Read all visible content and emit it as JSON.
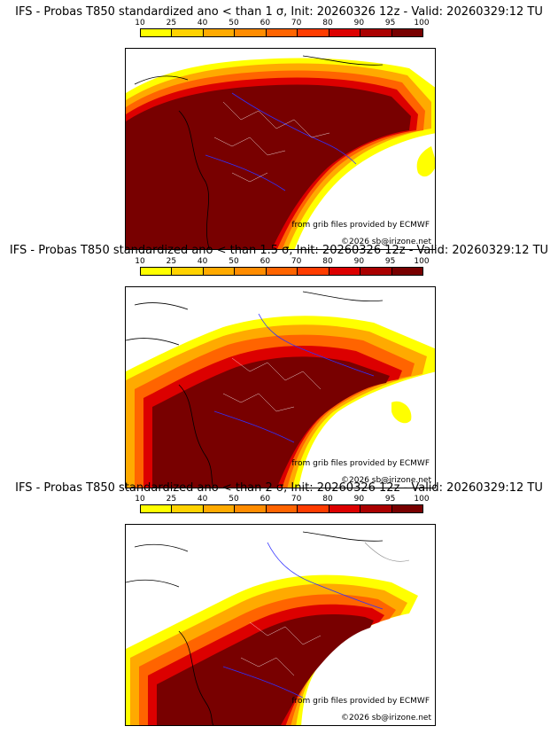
{
  "panels": [
    {
      "title": "IFS - Probas T850  standardized ano < than 1 σ, Init: 20260326 12z - Valid: 20260329:12 TU",
      "source_credit": "from grib files provided by ECMWF",
      "copyright": "©2026 sb@irizone.net"
    },
    {
      "title": "IFS - Probas T850  standardized ano < than 1.5 σ, Init: 20260326 12z - Valid: 20260329:12 TU",
      "source_credit": "from grib files provided by ECMWF",
      "copyright": "©2026 sb@irizone.net"
    },
    {
      "title": "IFS - Probas T850  standardized ano < than 2 σ, Init: 20260326 12z - Valid: 20260329:12 TU",
      "source_credit": "from grib files provided by ECMWF",
      "copyright": "©2026 sb@irizone.net"
    }
  ],
  "colorbar": {
    "labels": [
      "10",
      "25",
      "40",
      "50",
      "60",
      "70",
      "80",
      "90",
      "95",
      "100"
    ],
    "colors": [
      "#ffff00",
      "#ffd200",
      "#ffaa00",
      "#ff8c00",
      "#ff6400",
      "#ff3c00",
      "#dc0000",
      "#aa0000",
      "#780000"
    ]
  },
  "colors": {
    "coastline": "#000000",
    "rivers": "#3030ff",
    "departments": "#ffffff"
  }
}
